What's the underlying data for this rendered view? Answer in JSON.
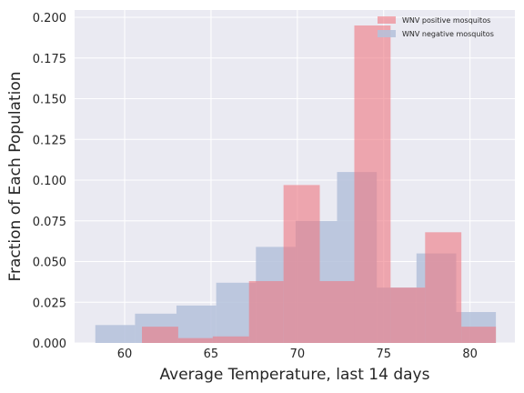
{
  "chart_data": {
    "type": "bar",
    "title": "",
    "xlabel": "Average Temperature, last 14 days",
    "ylabel": "Fraction of Each Population",
    "xlim": [
      57.1,
      82.6
    ],
    "ylim": [
      0.0,
      0.2045
    ],
    "x_ticks": [
      60,
      65,
      70,
      75,
      80
    ],
    "y_ticks": [
      0.0,
      0.025,
      0.05,
      0.075,
      0.1,
      0.125,
      0.15,
      0.175,
      0.2
    ],
    "y_tick_labels": [
      "0.000",
      "0.025",
      "0.050",
      "0.075",
      "0.100",
      "0.125",
      "0.150",
      "0.175",
      "0.200"
    ],
    "grid": true,
    "legend_position": "top-right",
    "series": [
      {
        "name": "WNV negative mosquitos",
        "color": "#b4c1da",
        "bins": [
          {
            "x0": 58.3,
            "x1": 60.6,
            "value": 0.011
          },
          {
            "x0": 60.6,
            "x1": 63.0,
            "value": 0.018
          },
          {
            "x0": 63.0,
            "x1": 65.3,
            "value": 0.023
          },
          {
            "x0": 65.3,
            "x1": 67.6,
            "value": 0.037
          },
          {
            "x0": 67.6,
            "x1": 69.9,
            "value": 0.059
          },
          {
            "x0": 69.9,
            "x1": 72.3,
            "value": 0.075
          },
          {
            "x0": 72.3,
            "x1": 74.6,
            "value": 0.105
          },
          {
            "x0": 74.6,
            "x1": 76.9,
            "value": 0.034
          },
          {
            "x0": 76.9,
            "x1": 79.2,
            "value": 0.055
          },
          {
            "x0": 79.2,
            "x1": 81.5,
            "value": 0.019
          }
        ]
      },
      {
        "name": "WNV positive mosquitos",
        "color": "#ee7780",
        "bins": [
          {
            "x0": 61.0,
            "x1": 63.1,
            "value": 0.01
          },
          {
            "x0": 63.1,
            "x1": 65.1,
            "value": 0.003
          },
          {
            "x0": 65.1,
            "x1": 67.2,
            "value": 0.004
          },
          {
            "x0": 67.2,
            "x1": 69.2,
            "value": 0.038
          },
          {
            "x0": 69.2,
            "x1": 71.3,
            "value": 0.097
          },
          {
            "x0": 71.3,
            "x1": 73.3,
            "value": 0.038
          },
          {
            "x0": 73.3,
            "x1": 75.4,
            "value": 0.195
          },
          {
            "x0": 75.4,
            "x1": 77.4,
            "value": 0.034
          },
          {
            "x0": 77.4,
            "x1": 79.5,
            "value": 0.068
          },
          {
            "x0": 79.5,
            "x1": 81.5,
            "value": 0.01
          }
        ]
      }
    ],
    "legend": [
      {
        "label": "WNV positive mosquitos",
        "color": "#ee7780"
      },
      {
        "label": "WNV negative mosquitos",
        "color": "#b4c1da"
      }
    ],
    "colors": {
      "plot_background": "#eaeaf2",
      "grid": "#ffffff",
      "text": "#262626"
    }
  }
}
